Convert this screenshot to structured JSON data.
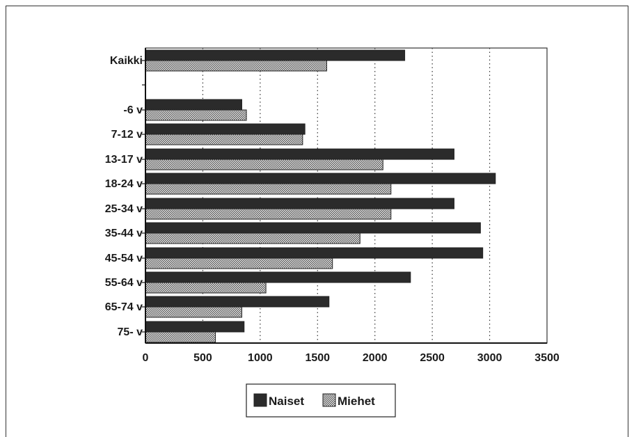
{
  "chart_data": {
    "type": "bar",
    "orientation": "horizontal",
    "categories": [
      "Kaikki",
      "",
      "-6 v",
      "7-12 v",
      "13-17 v",
      "18-24 v",
      "25-34 v",
      "35-44 v",
      "45-54 v",
      "55-64 v",
      "65-74 v",
      "75- v"
    ],
    "series": [
      {
        "name": "Naiset",
        "color": "#2b2b2b",
        "values": [
          2260,
          null,
          840,
          1390,
          2690,
          3050,
          2690,
          2920,
          2940,
          2310,
          1600,
          860
        ]
      },
      {
        "name": "Miehet",
        "color": "#c8c8c8",
        "pattern": "dotted",
        "values": [
          1580,
          null,
          880,
          1370,
          2070,
          2140,
          2140,
          1870,
          1630,
          1050,
          840,
          610
        ]
      }
    ],
    "xlim": [
      0,
      3500
    ],
    "xticks": [
      "0",
      "500",
      "1000",
      "1500",
      "2000",
      "2500",
      "3000",
      "3500"
    ],
    "grid": "vertical-dotted",
    "legend_position": "bottom-center",
    "title": "",
    "xlabel": "",
    "ylabel": ""
  }
}
